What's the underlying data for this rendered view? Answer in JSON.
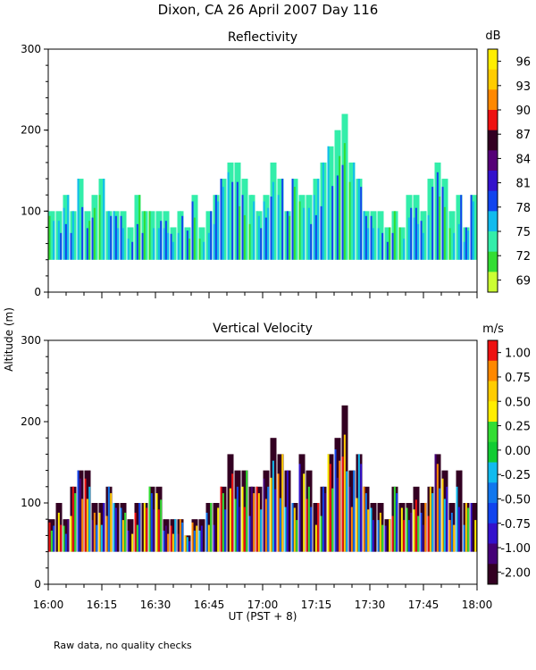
{
  "main_title": "Dixon, CA 26 April 2007  Day 116",
  "y_axis_label": "Altitude (m)",
  "x_axis_label": "UT  (PST + 8)",
  "footnote": "Raw data, no quality checks",
  "chart_data": [
    {
      "type": "heatmap",
      "title": "Reflectivity",
      "xlabel": "UT  (PST + 8)",
      "ylabel": "Altitude (m)",
      "xlim_minutes_after_1600": [
        0,
        120
      ],
      "ylim": [
        0,
        300
      ],
      "x_ticks": [
        "16:00",
        "16:15",
        "16:30",
        "16:45",
        "17:00",
        "17:15",
        "17:30",
        "17:45",
        "18:00"
      ],
      "y_ticks": [
        0,
        100,
        200,
        300
      ],
      "data_floor_m": 40,
      "colorbar": {
        "unit": "dB",
        "labels": [
          "69",
          "72",
          "75",
          "78",
          "81",
          "84",
          "87",
          "90",
          "93",
          "96"
        ],
        "colors": [
          "#ccff33",
          "#33dd33",
          "#33eeaa",
          "#11bbee",
          "#1144ee",
          "#3311cc",
          "#550077",
          "#330022",
          "#ee1111",
          "#ff8800",
          "#ffcc00",
          "#ffee00"
        ]
      },
      "echo_tops": [
        {
          "t": 1,
          "top": 100
        },
        {
          "t": 3,
          "top": 100
        },
        {
          "t": 5,
          "top": 120
        },
        {
          "t": 7,
          "top": 100
        },
        {
          "t": 9,
          "top": 140
        },
        {
          "t": 11,
          "top": 100
        },
        {
          "t": 13,
          "top": 120
        },
        {
          "t": 15,
          "top": 140
        },
        {
          "t": 17,
          "top": 100
        },
        {
          "t": 19,
          "top": 100
        },
        {
          "t": 21,
          "top": 100
        },
        {
          "t": 23,
          "top": 80
        },
        {
          "t": 25,
          "top": 120
        },
        {
          "t": 27,
          "top": 100
        },
        {
          "t": 29,
          "top": 100
        },
        {
          "t": 31,
          "top": 100
        },
        {
          "t": 33,
          "top": 100
        },
        {
          "t": 35,
          "top": 80
        },
        {
          "t": 37,
          "top": 100
        },
        {
          "t": 39,
          "top": 80
        },
        {
          "t": 41,
          "top": 120
        },
        {
          "t": 43,
          "top": 80
        },
        {
          "t": 45,
          "top": 100
        },
        {
          "t": 47,
          "top": 120
        },
        {
          "t": 49,
          "top": 140
        },
        {
          "t": 51,
          "top": 160
        },
        {
          "t": 53,
          "top": 160
        },
        {
          "t": 55,
          "top": 140
        },
        {
          "t": 57,
          "top": 120
        },
        {
          "t": 59,
          "top": 100
        },
        {
          "t": 61,
          "top": 120
        },
        {
          "t": 63,
          "top": 160
        },
        {
          "t": 65,
          "top": 140
        },
        {
          "t": 67,
          "top": 100
        },
        {
          "t": 69,
          "top": 140
        },
        {
          "t": 71,
          "top": 120
        },
        {
          "t": 73,
          "top": 120
        },
        {
          "t": 75,
          "top": 140
        },
        {
          "t": 77,
          "top": 160
        },
        {
          "t": 79,
          "top": 180
        },
        {
          "t": 81,
          "top": 200
        },
        {
          "t": 83,
          "top": 220
        },
        {
          "t": 85,
          "top": 160
        },
        {
          "t": 87,
          "top": 140
        },
        {
          "t": 89,
          "top": 100
        },
        {
          "t": 91,
          "top": 100
        },
        {
          "t": 93,
          "top": 100
        },
        {
          "t": 95,
          "top": 80
        },
        {
          "t": 97,
          "top": 100
        },
        {
          "t": 99,
          "top": 80
        },
        {
          "t": 101,
          "top": 120
        },
        {
          "t": 103,
          "top": 120
        },
        {
          "t": 105,
          "top": 100
        },
        {
          "t": 107,
          "top": 140
        },
        {
          "t": 109,
          "top": 160
        },
        {
          "t": 111,
          "top": 140
        },
        {
          "t": 113,
          "top": 100
        },
        {
          "t": 115,
          "top": 120
        },
        {
          "t": 117,
          "top": 80
        },
        {
          "t": 119,
          "top": 120
        }
      ]
    },
    {
      "type": "heatmap",
      "title": "Vertical Velocity",
      "xlabel": "UT  (PST + 8)",
      "ylabel": "Altitude (m)",
      "xlim_minutes_after_1600": [
        0,
        120
      ],
      "ylim": [
        0,
        300
      ],
      "x_ticks": [
        "16:00",
        "16:15",
        "16:30",
        "16:45",
        "17:00",
        "17:15",
        "17:30",
        "17:45",
        "18:00"
      ],
      "y_ticks": [
        0,
        100,
        200,
        300
      ],
      "data_floor_m": 40,
      "colorbar": {
        "unit": "m/s",
        "labels": [
          "1.00",
          "0.75",
          "0.50",
          "0.25",
          "0.00",
          "-0.25",
          "-0.50",
          "-0.75",
          "-1.00",
          "-2.00"
        ],
        "colors": [
          "#ee1111",
          "#ff8800",
          "#ffcc00",
          "#ffee00",
          "#33dd33",
          "#11cc33",
          "#11bbee",
          "#1177ee",
          "#1144ee",
          "#3311cc",
          "#440077",
          "#330022"
        ]
      },
      "echo_tops": [
        {
          "t": 1,
          "top": 80
        },
        {
          "t": 3,
          "top": 100
        },
        {
          "t": 5,
          "top": 80
        },
        {
          "t": 7,
          "top": 120
        },
        {
          "t": 9,
          "top": 140
        },
        {
          "t": 11,
          "top": 140
        },
        {
          "t": 13,
          "top": 100
        },
        {
          "t": 15,
          "top": 100
        },
        {
          "t": 17,
          "top": 120
        },
        {
          "t": 19,
          "top": 100
        },
        {
          "t": 21,
          "top": 100
        },
        {
          "t": 23,
          "top": 80
        },
        {
          "t": 25,
          "top": 100
        },
        {
          "t": 27,
          "top": 100
        },
        {
          "t": 29,
          "top": 120
        },
        {
          "t": 31,
          "top": 120
        },
        {
          "t": 33,
          "top": 80
        },
        {
          "t": 35,
          "top": 80
        },
        {
          "t": 37,
          "top": 80
        },
        {
          "t": 39,
          "top": 60
        },
        {
          "t": 41,
          "top": 80
        },
        {
          "t": 43,
          "top": 80
        },
        {
          "t": 45,
          "top": 100
        },
        {
          "t": 47,
          "top": 100
        },
        {
          "t": 49,
          "top": 120
        },
        {
          "t": 51,
          "top": 160
        },
        {
          "t": 53,
          "top": 140
        },
        {
          "t": 55,
          "top": 140
        },
        {
          "t": 57,
          "top": 120
        },
        {
          "t": 59,
          "top": 120
        },
        {
          "t": 61,
          "top": 140
        },
        {
          "t": 63,
          "top": 180
        },
        {
          "t": 65,
          "top": 160
        },
        {
          "t": 67,
          "top": 140
        },
        {
          "t": 69,
          "top": 100
        },
        {
          "t": 71,
          "top": 160
        },
        {
          "t": 73,
          "top": 140
        },
        {
          "t": 75,
          "top": 100
        },
        {
          "t": 77,
          "top": 120
        },
        {
          "t": 79,
          "top": 160
        },
        {
          "t": 81,
          "top": 180
        },
        {
          "t": 83,
          "top": 220
        },
        {
          "t": 85,
          "top": 140
        },
        {
          "t": 87,
          "top": 160
        },
        {
          "t": 89,
          "top": 120
        },
        {
          "t": 91,
          "top": 100
        },
        {
          "t": 93,
          "top": 100
        },
        {
          "t": 95,
          "top": 80
        },
        {
          "t": 97,
          "top": 120
        },
        {
          "t": 99,
          "top": 100
        },
        {
          "t": 101,
          "top": 100
        },
        {
          "t": 103,
          "top": 120
        },
        {
          "t": 105,
          "top": 100
        },
        {
          "t": 107,
          "top": 120
        },
        {
          "t": 109,
          "top": 160
        },
        {
          "t": 111,
          "top": 140
        },
        {
          "t": 113,
          "top": 100
        },
        {
          "t": 115,
          "top": 140
        },
        {
          "t": 117,
          "top": 100
        },
        {
          "t": 119,
          "top": 100
        }
      ]
    }
  ]
}
